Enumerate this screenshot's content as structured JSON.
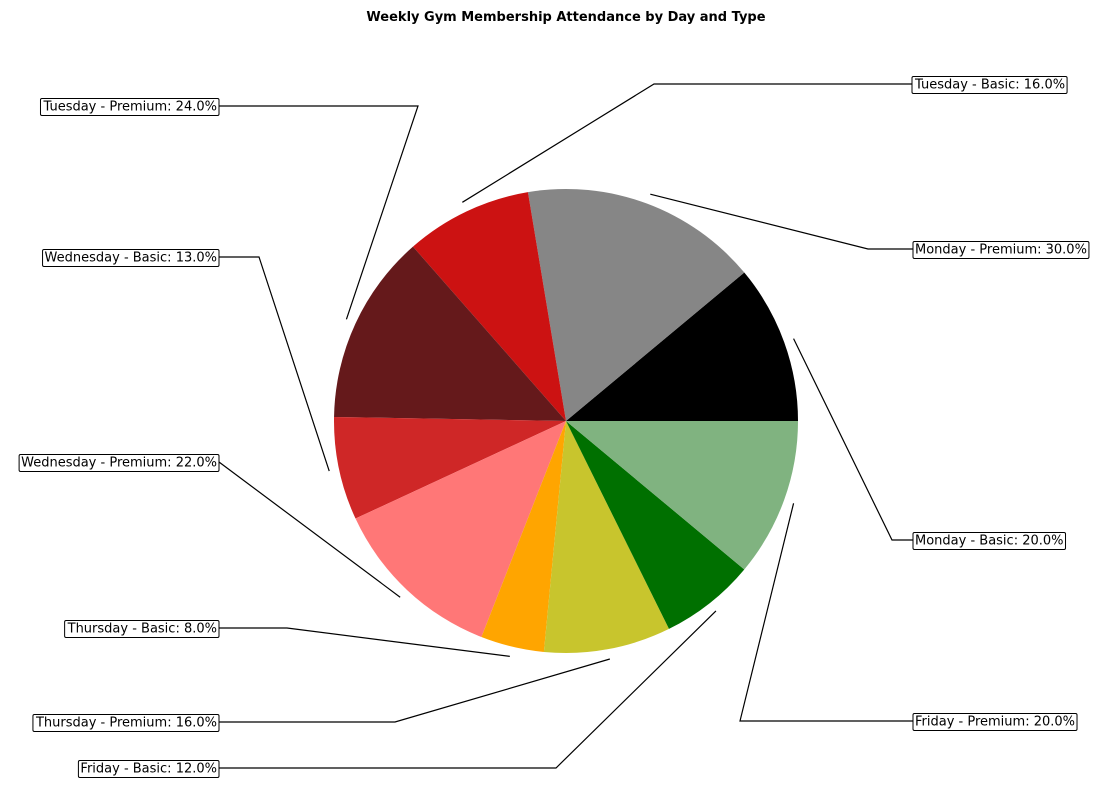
{
  "chart_data": {
    "type": "pie",
    "title": "Weekly Gym Membership Attendance by Day and Type",
    "slices": [
      {
        "label": "Monday - Basic: 20.0%",
        "value": 20,
        "color": "#000000"
      },
      {
        "label": "Monday - Premium: 30.0%",
        "value": 30,
        "color": "#868686"
      },
      {
        "label": "Tuesday - Basic: 16.0%",
        "value": 16,
        "color": "#cc1212"
      },
      {
        "label": "Tuesday - Premium: 24.0%",
        "value": 24,
        "color": "#65191b"
      },
      {
        "label": "Wednesday - Basic: 13.0%",
        "value": 13,
        "color": "#cf2727"
      },
      {
        "label": "Wednesday - Premium: 22.0%",
        "value": 22,
        "color": "#ff7777"
      },
      {
        "label": "Thursday - Basic: 8.0%",
        "value": 8,
        "color": "#ffa500"
      },
      {
        "label": "Thursday - Premium: 16.0%",
        "value": 16,
        "color": "#c8c52d"
      },
      {
        "label": "Friday - Basic: 12.0%",
        "value": 12,
        "color": "#007000"
      },
      {
        "label": "Friday - Premium: 20.0%",
        "value": 20,
        "color": "#80b380"
      }
    ]
  }
}
